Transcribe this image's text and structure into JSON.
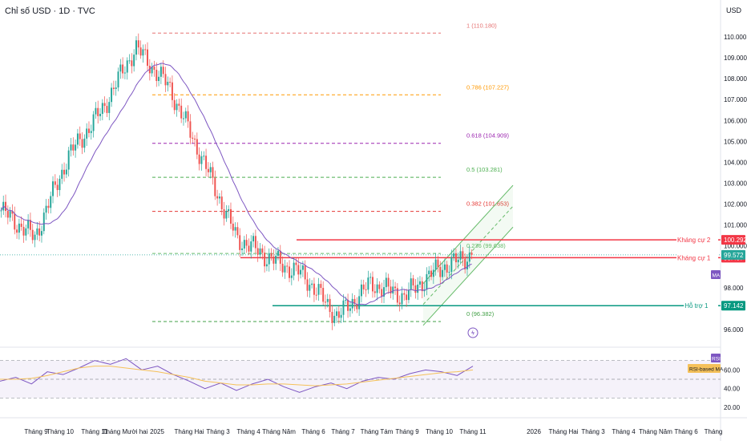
{
  "header": {
    "title": "Chỉ số USD · 1D · TVC",
    "currency": "USD"
  },
  "colors": {
    "up": "#26a69a",
    "down": "#ef5350",
    "ma": "#7e57c2",
    "rsi": "#7e57c2",
    "rsi_ma": "#f5c15a",
    "resistance": "#f23645",
    "support": "#089981",
    "fib_1": "#e57373",
    "fib_0786": "#ff9800",
    "fib_0618": "#9c27b0",
    "fib_05": "#4caf50",
    "fib_0382": "#e53935",
    "fib_0236": "#66bb6a",
    "fib_0": "#43a047",
    "channel": "#66bb6a",
    "current": "#26a69a"
  },
  "chart_data": [
    {
      "type": "candlestick",
      "series_name": "Chỉ số USD",
      "y_axis": {
        "ticks": [
          "110.000",
          "109.000",
          "108.000",
          "107.000",
          "106.000",
          "105.000",
          "104.000",
          "103.000",
          "102.000",
          "101.000",
          "100.000",
          "98.000",
          "96.000"
        ],
        "ylim": [
          95.8,
          110.6
        ]
      },
      "x_axis_labels": [
        "Tháng 9",
        "Tháng 10",
        "Tháng 11",
        "Tháng Mười hai",
        "2025",
        "Tháng Hai",
        "Tháng 3",
        "Tháng 4",
        "Tháng Năm",
        "Tháng 6",
        "Tháng 7",
        "Tháng Tám",
        "Tháng 9",
        "Tháng 10",
        "Tháng 11",
        "2026",
        "Tháng Hai",
        "Tháng 3",
        "Tháng 4",
        "Tháng Năm",
        "Tháng 6",
        "Tháng"
      ],
      "key_points": [
        {
          "date": "Tháng 9",
          "value": 101.7
        },
        {
          "date": "Tháng 10",
          "value": 100.4
        },
        {
          "date": "Tháng 11",
          "value": 104.3
        },
        {
          "date": "Tháng Mười hai",
          "value": 106.5
        },
        {
          "date": "2025",
          "value": 109.5
        },
        {
          "date": "Tháng Hai",
          "value": 107.6
        },
        {
          "date": "Tháng 3",
          "value": 104.1
        },
        {
          "date": "Tháng 4",
          "value": 100.4
        },
        {
          "date": "Tháng Năm",
          "value": 99.4
        },
        {
          "date": "Tháng 6",
          "value": 98.6
        },
        {
          "date": "Tháng 7",
          "value": 96.6
        },
        {
          "date": "Tháng Tám",
          "value": 98.2
        },
        {
          "date": "Tháng 9",
          "value": 97.6
        },
        {
          "date": "Tháng 10",
          "value": 98.9
        },
        {
          "date": "Tháng 11",
          "value": 99.572
        }
      ],
      "fibonacci": [
        {
          "label": "1 (110.180)",
          "value": 110.18
        },
        {
          "label": "0.786 (107.227)",
          "value": 107.227
        },
        {
          "label": "0.618 (104.909)",
          "value": 104.909
        },
        {
          "label": "0.5 (103.281)",
          "value": 103.281
        },
        {
          "label": "0.382 (101.653)",
          "value": 101.653
        },
        {
          "label": "0.236 (99.638)",
          "value": 99.638
        },
        {
          "label": "0 (96.382)",
          "value": 96.382
        }
      ],
      "levels": [
        {
          "label": "Kháng cự 2",
          "value": 100.292,
          "price": "100.292"
        },
        {
          "label": "Kháng cự 1",
          "value": 99.437,
          "price": "99.437"
        },
        {
          "label": "Hỗ trợ 1",
          "value": 97.142,
          "price": "97.142"
        }
      ],
      "current_price": {
        "value": 99.572,
        "label": "99.572"
      },
      "indicator_badge": "MA"
    },
    {
      "type": "line",
      "series": [
        {
          "name": "RSI",
          "values": [
            48,
            52,
            45,
            58,
            55,
            62,
            70,
            66,
            72,
            60,
            64,
            55,
            48,
            40,
            46,
            38,
            45,
            50,
            42,
            36,
            42,
            46,
            40,
            48,
            52,
            50,
            56,
            60,
            58,
            54,
            64
          ]
        },
        {
          "name": "RSI-based MA",
          "values": [
            50,
            50,
            51,
            54,
            58,
            62,
            64,
            64,
            62,
            60,
            58,
            55,
            52,
            48,
            46,
            44,
            44,
            45,
            45,
            44,
            43,
            44,
            45,
            47,
            49,
            51,
            53,
            55,
            57,
            58,
            60
          ]
        }
      ],
      "y_axis": {
        "ticks": [
          "60.00",
          "40.00",
          "20.00"
        ],
        "ylim": [
          20,
          80
        ]
      },
      "badge": "RSI",
      "legend": [
        "RSI-based MA"
      ]
    }
  ]
}
